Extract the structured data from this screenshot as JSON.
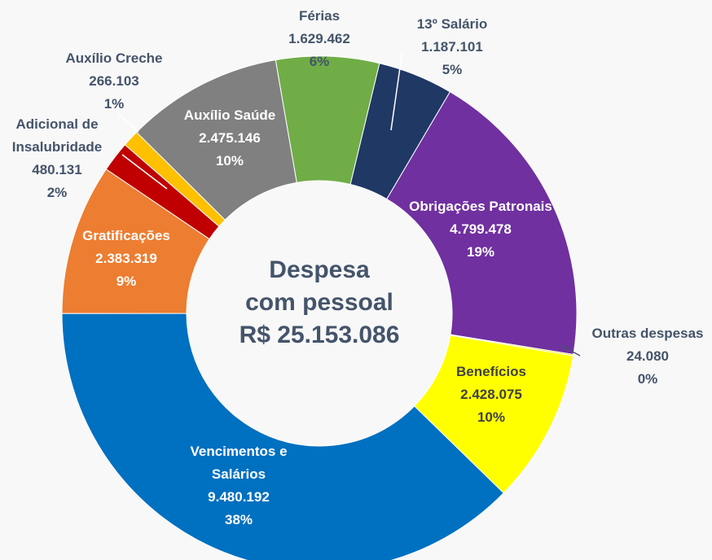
{
  "chart_data": {
    "type": "donut",
    "center_label": [
      "Despesa",
      "com pessoal",
      "R$ 25.153.086"
    ],
    "categories": [
      "Férias",
      "13º Salário",
      "Obrigações Patronais",
      "Outras despesas",
      "Benefícios",
      "Vencimentos e Salários",
      "Gratificações",
      "Adicional de Insalubridade",
      "Auxílio Creche",
      "Auxílio Saúde"
    ],
    "values": [
      1629462,
      1187101,
      4799478,
      24080,
      2428075,
      9480192,
      2383319,
      480131,
      266103,
      2475146
    ],
    "value_labels": [
      "1.629.462",
      "1.187.101",
      "4.799.478",
      "24.080",
      "2.428.075",
      "9.480.192",
      "2.383.319",
      "480.131",
      "266.103",
      "2.475.146"
    ],
    "percent_labels": [
      "6%",
      "5%",
      "19%",
      "0%",
      "10%",
      "38%",
      "9%",
      "2%",
      "1%",
      "10%"
    ],
    "colors": [
      "#70ad47",
      "#203864",
      "#7030a0",
      "#e6e600",
      "#ffff00",
      "#0070c0",
      "#ed7d31",
      "#c00000",
      "#ffc000",
      "#808080"
    ]
  }
}
